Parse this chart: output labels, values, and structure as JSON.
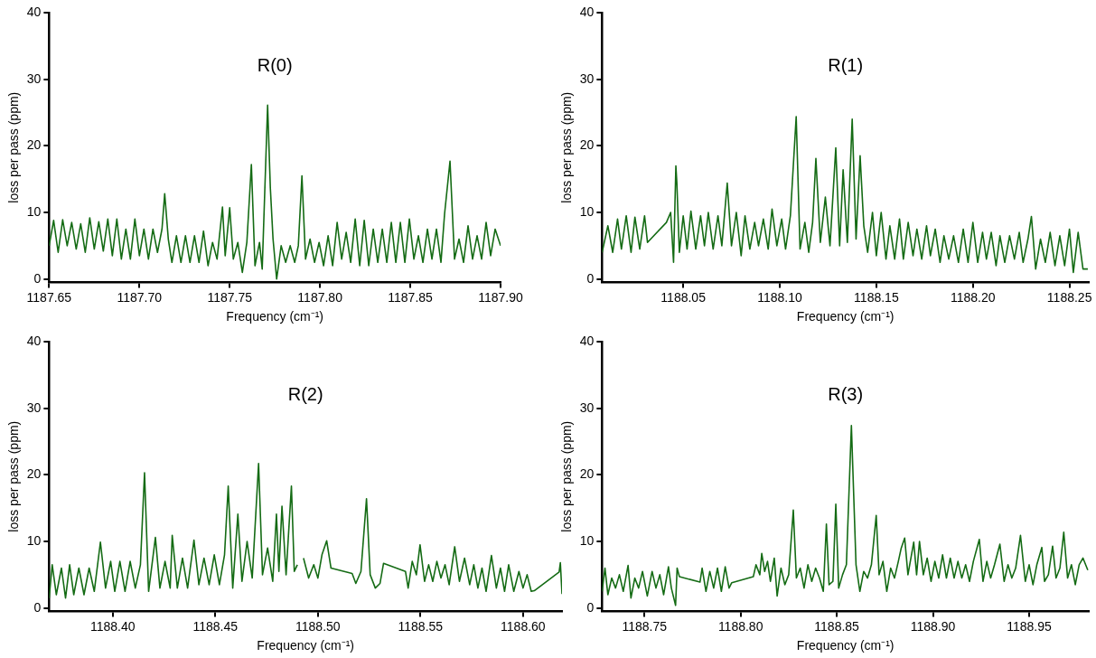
{
  "chart_data": [
    {
      "type": "line",
      "title": "R(0)",
      "xlabel": "Frequency (cm⁻¹)",
      "ylabel": "loss per pass (ppm)",
      "color": "#146b14",
      "legend": false,
      "xlim": [
        1187.65,
        1187.9
      ],
      "xticks": [
        {
          "value": 1187.65,
          "label": "1187.65"
        },
        {
          "value": 1187.7,
          "label": "1187.70"
        },
        {
          "value": 1187.75,
          "label": "1187.75"
        },
        {
          "value": 1187.8,
          "label": "1187.80"
        },
        {
          "value": 1187.85,
          "label": "1187.85"
        },
        {
          "value": 1187.9,
          "label": "1187.90"
        }
      ],
      "ylim": [
        -0.5,
        40
      ],
      "yticks": [
        0,
        10,
        20,
        30,
        40
      ],
      "x": [
        1187.65,
        1187.6525,
        1187.655,
        1187.6575,
        1187.66,
        1187.6625,
        1187.665,
        1187.6675,
        1187.67,
        1187.6725,
        1187.675,
        1187.6775,
        1187.68,
        1187.6825,
        1187.685,
        1187.6875,
        1187.69,
        1187.6925,
        1187.695,
        1187.6975,
        1187.7,
        1187.7025,
        1187.705,
        1187.7075,
        1187.71,
        1187.7125,
        1187.714,
        1187.716,
        1187.718,
        1187.7205,
        1187.723,
        1187.7255,
        1187.728,
        1187.7305,
        1187.733,
        1187.7355,
        1187.738,
        1187.7405,
        1187.743,
        1187.746,
        1187.7475,
        1187.75,
        1187.752,
        1187.7545,
        1187.757,
        1187.7595,
        1187.762,
        1187.764,
        1187.7665,
        1187.768,
        1187.771,
        1187.7725,
        1187.774,
        1187.776,
        1187.7785,
        1187.781,
        1187.7835,
        1187.786,
        1187.788,
        1187.79,
        1187.792,
        1187.7945,
        1187.797,
        1187.7995,
        1187.802,
        1187.8045,
        1187.807,
        1187.8095,
        1187.812,
        1187.8145,
        1187.817,
        1187.8195,
        1187.822,
        1187.8245,
        1187.827,
        1187.8295,
        1187.832,
        1187.8345,
        1187.837,
        1187.8395,
        1187.842,
        1187.8445,
        1187.847,
        1187.8495,
        1187.852,
        1187.8545,
        1187.857,
        1187.8595,
        1187.862,
        1187.8645,
        1187.867,
        1187.869,
        1187.872,
        1187.8745,
        1187.877,
        1187.8795,
        1187.882,
        1187.8845,
        1187.887,
        1187.8895,
        1187.892,
        1187.8945,
        1187.897,
        1187.9
      ],
      "values": [
        5,
        8.8,
        4,
        8.9,
        5,
        8.5,
        4.5,
        8.3,
        4,
        9.2,
        4.5,
        8.6,
        4.2,
        9,
        3.5,
        9,
        3,
        7.5,
        3,
        9,
        3.5,
        7.5,
        3,
        7.5,
        4,
        7.5,
        12.8,
        6,
        2.5,
        6.5,
        2.5,
        6.5,
        2.5,
        6.5,
        2.5,
        7.2,
        2,
        5.5,
        3,
        10.8,
        3.5,
        10.7,
        3,
        5.5,
        1,
        5.5,
        17.2,
        2,
        5.5,
        1.5,
        26.1,
        13.7,
        6,
        0,
        5,
        2.5,
        5,
        2.5,
        5,
        15.5,
        3,
        6,
        2.5,
        5.5,
        2,
        6.5,
        2,
        8.5,
        3,
        7,
        2.5,
        9,
        2,
        8.8,
        2,
        7.5,
        2.5,
        7.5,
        2.5,
        8.5,
        2.5,
        8.5,
        2.5,
        9,
        3,
        6.5,
        2.5,
        7.5,
        3,
        7.5,
        2.5,
        9.8,
        17.7,
        3,
        6,
        2.5,
        8,
        3,
        6.5,
        3,
        8.5,
        3.5,
        7.5,
        5
      ]
    },
    {
      "type": "line",
      "title": "R(1)",
      "xlabel": "Frequency (cm⁻¹)",
      "ylabel": "loss per pass (ppm)",
      "color": "#146b14",
      "legend": false,
      "xlim": [
        1188.008,
        1188.26
      ],
      "xticks": [
        1188.05,
        {
          "value": 1188.1,
          "label": "1188.10"
        },
        1188.15,
        {
          "value": 1188.2,
          "label": "1188.20"
        },
        1188.25
      ],
      "ylim": [
        -0.5,
        40
      ],
      "yticks": [
        0,
        10,
        20,
        30,
        40
      ],
      "x": [
        1188.008,
        1188.011,
        1188.0135,
        1188.016,
        1188.018,
        1188.0205,
        1188.023,
        1188.025,
        1188.0275,
        1188.03,
        1188.0315,
        1188.0413,
        1188.0435,
        1188.045,
        1188.0462,
        1188.0467,
        1188.048,
        1188.05,
        1188.052,
        1188.054,
        1188.0565,
        1188.059,
        1188.061,
        1188.063,
        1188.0655,
        1188.068,
        1188.07,
        1188.0728,
        1188.075,
        1188.0775,
        1188.08,
        1188.082,
        1188.0845,
        1188.087,
        1188.089,
        1188.0915,
        1188.094,
        1188.096,
        1188.0985,
        1188.101,
        1188.103,
        1188.1055,
        1188.1085,
        1188.1105,
        1188.113,
        1188.115,
        1188.117,
        1188.1187,
        1188.121,
        1188.1236,
        1188.126,
        1188.129,
        1188.131,
        1188.1328,
        1188.135,
        1188.1375,
        1188.1395,
        1188.1416,
        1188.1435,
        1188.1455,
        1188.148,
        1188.15,
        1188.1525,
        1188.155,
        1188.157,
        1188.1595,
        1188.162,
        1188.164,
        1188.1665,
        1188.169,
        1188.171,
        1188.1735,
        1188.176,
        1188.178,
        1188.1805,
        1188.183,
        1188.185,
        1188.1875,
        1188.19,
        1188.1925,
        1188.195,
        1188.1975,
        1188.2,
        1188.2025,
        1188.205,
        1188.207,
        1188.2095,
        1188.212,
        1188.214,
        1188.2165,
        1188.219,
        1188.2215,
        1188.224,
        1188.226,
        1188.2285,
        1188.2303,
        1188.2325,
        1188.235,
        1188.2375,
        1188.24,
        1188.2425,
        1188.245,
        1188.2475,
        1188.25,
        1188.252,
        1188.2545,
        1188.257,
        1188.2595
      ],
      "values": [
        4,
        8,
        4,
        9,
        4.5,
        9.5,
        4,
        9.3,
        4.5,
        9.5,
        5.5,
        8.5,
        10,
        2.5,
        17,
        14.5,
        4,
        9.5,
        4.5,
        10.2,
        4.5,
        9.5,
        5,
        10,
        4.5,
        9.5,
        5,
        14.4,
        5,
        10,
        3.5,
        9.5,
        4.5,
        8.5,
        5,
        9,
        4.5,
        10.5,
        5,
        9,
        4.5,
        9.5,
        24.4,
        4.5,
        8.5,
        4,
        8.5,
        18.1,
        5.5,
        12.3,
        5,
        19.7,
        5,
        16.4,
        5.5,
        24,
        6,
        18.5,
        8,
        4,
        10,
        3.5,
        10,
        3,
        8,
        3,
        9,
        3,
        8.5,
        3.5,
        7.5,
        3,
        8,
        3.5,
        7.5,
        2.5,
        6.5,
        3,
        6.5,
        2.5,
        7.5,
        2.5,
        8.5,
        2.5,
        7,
        3,
        7,
        2,
        6.5,
        2.5,
        6.5,
        3,
        7,
        2.5,
        6,
        9.4,
        1.5,
        6,
        2.5,
        7,
        2,
        6.5,
        2,
        7.5,
        1,
        7,
        1.5,
        1.5
      ]
    },
    {
      "type": "line",
      "title": "R(2)",
      "xlabel": "Frequency (cm⁻¹)",
      "ylabel": "loss per pass (ppm)",
      "color": "#146b14",
      "legend": false,
      "xlim": [
        1188.369,
        1188.619
      ],
      "xticks": [
        {
          "value": 1188.4,
          "label": "1188.40"
        },
        1188.45,
        {
          "value": 1188.5,
          "label": "1188.50"
        },
        1188.55,
        {
          "value": 1188.6,
          "label": "1188.60"
        }
      ],
      "ylim": [
        -0.5,
        40
      ],
      "yticks": [
        0,
        10,
        20,
        30,
        40
      ],
      "x": [
        1188.369,
        1188.3705,
        1188.3725,
        1188.375,
        1188.377,
        1188.379,
        1188.381,
        1188.3835,
        1188.386,
        1188.3885,
        1188.391,
        1188.394,
        1188.3965,
        1188.399,
        1188.401,
        1188.4035,
        1188.406,
        1188.4085,
        1188.411,
        1188.4135,
        1188.4155,
        1188.4175,
        1188.4208,
        1188.423,
        1188.4255,
        1188.428,
        1188.429,
        1188.4315,
        1188.434,
        1188.4365,
        1188.4396,
        1188.442,
        1188.4445,
        1188.447,
        1188.4495,
        1188.452,
        1188.4545,
        1188.4563,
        1188.4585,
        1188.461,
        1188.463,
        1188.4655,
        1188.468,
        1188.4711,
        1188.473,
        1188.4755,
        1188.478,
        1188.4798,
        1188.481,
        1188.4825,
        1188.4845,
        1188.4871,
        1188.4885,
        1188.49,
        1188.4915,
        1188.493,
        1188.4955,
        1188.498,
        1188.5,
        1188.502,
        1188.5043,
        1188.5064,
        1188.5167,
        1188.5185,
        1188.521,
        1188.5237,
        1188.5255,
        1188.528,
        1188.5303,
        1188.532,
        1188.5427,
        1188.544,
        1188.546,
        1188.548,
        1188.5498,
        1188.552,
        1188.554,
        1188.556,
        1188.558,
        1188.56,
        1188.562,
        1188.564,
        1188.5667,
        1188.569,
        1188.5715,
        1188.574,
        1188.576,
        1188.578,
        1188.58,
        1188.582,
        1188.5846,
        1188.587,
        1188.589,
        1188.591,
        1188.593,
        1188.5955,
        1188.598,
        1188.6,
        1188.602,
        1188.604,
        1188.6055,
        1188.6176,
        1188.6182,
        1188.619
      ],
      "values": [
        1.5,
        6.5,
        2,
        6,
        1.5,
        6.5,
        2,
        6,
        2,
        6,
        2.5,
        9.9,
        3,
        7,
        2.5,
        7,
        2.5,
        7,
        3,
        6.5,
        20.3,
        2.5,
        10.6,
        3,
        7,
        3,
        10.9,
        3,
        7.5,
        3,
        10.2,
        3.5,
        7.5,
        3.5,
        8,
        3.5,
        8,
        18.3,
        3,
        14.1,
        4,
        10,
        4.5,
        21.7,
        5,
        9,
        4,
        14.1,
        5.5,
        15.3,
        5,
        18.3,
        5.5,
        6.5,
        null,
        7.5,
        4.5,
        6.5,
        4.5,
        8,
        10.1,
        6,
        5.2,
        3.7,
        5.5,
        16.4,
        5,
        3,
        3.7,
        6.7,
        5.5,
        3,
        7,
        5,
        9.5,
        4,
        6.5,
        4,
        7,
        4.5,
        6.5,
        3.5,
        9.2,
        4,
        7.5,
        3.5,
        6.5,
        3,
        6,
        2.5,
        7.9,
        3,
        6,
        2.5,
        6.5,
        2.5,
        5.5,
        3,
        5,
        2.5,
        2.6,
        5.4,
        6.8,
        2.1
      ]
    },
    {
      "type": "line",
      "title": "R(3)",
      "xlabel": "Frequency (cm⁻¹)",
      "ylabel": "loss per pass (ppm)",
      "color": "#146b14",
      "legend": false,
      "xlim": [
        1188.728,
        1188.981
      ],
      "xticks": [
        1188.75,
        {
          "value": 1188.8,
          "label": "1188.80"
        },
        1188.85,
        {
          "value": 1188.9,
          "label": "1188.90"
        },
        1188.95
      ],
      "ylim": [
        -0.5,
        40
      ],
      "yticks": [
        0,
        10,
        20,
        30,
        40
      ],
      "x": [
        1188.728,
        1188.7295,
        1188.731,
        1188.733,
        1188.735,
        1188.737,
        1188.739,
        1188.7415,
        1188.743,
        1188.745,
        1188.747,
        1188.749,
        1188.7515,
        1188.754,
        1188.756,
        1188.758,
        1188.76,
        1188.7625,
        1188.764,
        1188.7662,
        1188.767,
        1188.7682,
        1188.7789,
        1188.78,
        1188.782,
        1188.784,
        1188.786,
        1188.788,
        1188.79,
        1188.792,
        1188.794,
        1188.7954,
        1188.8066,
        1188.808,
        1188.81,
        1188.811,
        1188.8125,
        1188.814,
        1188.8155,
        1188.8175,
        1188.819,
        1188.821,
        1188.823,
        1188.825,
        1188.8274,
        1188.829,
        1188.831,
        1188.833,
        1188.835,
        1188.837,
        1188.839,
        1188.841,
        1188.843,
        1188.8446,
        1188.846,
        1188.848,
        1188.8495,
        1188.851,
        1188.853,
        1188.855,
        1188.8576,
        1188.86,
        1188.862,
        1188.864,
        1188.866,
        1188.868,
        1188.8705,
        1188.872,
        1188.874,
        1188.876,
        1188.878,
        1188.88,
        1188.882,
        1188.8835,
        1188.8853,
        1188.887,
        1188.89,
        1188.8915,
        1188.893,
        1188.895,
        1188.897,
        1188.899,
        1188.901,
        1188.903,
        1188.905,
        1188.907,
        1188.909,
        1188.911,
        1188.913,
        1188.915,
        1188.917,
        1188.919,
        1188.921,
        1188.9241,
        1188.926,
        1188.928,
        1188.93,
        1188.932,
        1188.9348,
        1188.937,
        1188.939,
        1188.941,
        1188.943,
        1188.9455,
        1188.948,
        1188.95,
        1188.952,
        1188.954,
        1188.9566,
        1188.958,
        1188.96,
        1188.9622,
        1188.964,
        1188.966,
        1188.968,
        1188.97,
        1188.972,
        1188.974,
        1188.976,
        1188.978,
        1188.9805
      ],
      "values": [
        2.5,
        6,
        2,
        4.5,
        3,
        5,
        2.5,
        6.4,
        1.5,
        4.5,
        3,
        5.5,
        1.8,
        5.5,
        3,
        5,
        2,
        6.2,
        3,
        0.4,
        6,
        4.7,
        3.9,
        6,
        2.5,
        5.5,
        3,
        6,
        2.5,
        6.2,
        3,
        3.8,
        4.7,
        6.5,
        5,
        8.2,
        5.5,
        7,
        4,
        7.5,
        1.8,
        6,
        3.5,
        5,
        14.7,
        4.5,
        6,
        3,
        6.5,
        4,
        6,
        4.5,
        2.5,
        12.6,
        3.5,
        4,
        15.6,
        3,
        5,
        6.5,
        27.4,
        6.5,
        2.5,
        5.5,
        4.5,
        6.5,
        13.9,
        5,
        7,
        2.5,
        6,
        4.5,
        7,
        9,
        10.5,
        5,
        9.9,
        5,
        10,
        5,
        7.5,
        4,
        7,
        4.5,
        8,
        4.5,
        7.5,
        4.5,
        7,
        4.5,
        6.5,
        4,
        7,
        10.3,
        4,
        7,
        4.5,
        6.5,
        9.6,
        4,
        6.5,
        4.5,
        6,
        10.9,
        4,
        6.5,
        3.5,
        6.5,
        9.1,
        4,
        5,
        9.3,
        4.5,
        6,
        11.4,
        4.5,
        6.5,
        3.5,
        6.5,
        7.5,
        5.7
      ]
    }
  ]
}
